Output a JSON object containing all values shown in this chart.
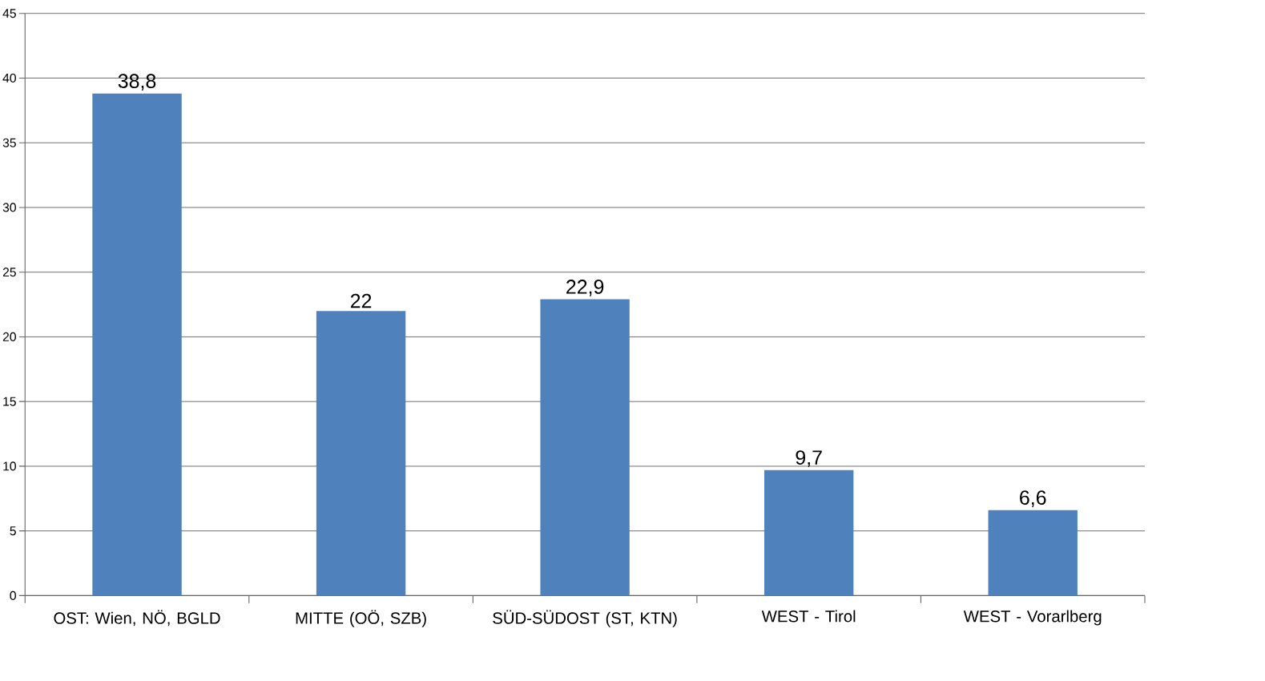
{
  "chart_data": {
    "type": "bar",
    "categories": [
      "OST: Wien, NÖ, BGLD",
      "MITTE (OÖ, SZB)",
      "SÜD-SÜDOST (ST, KTN)",
      "WEST - Tirol",
      "WEST - Vorarlberg"
    ],
    "values": [
      38.8,
      22,
      22.9,
      9.7,
      6.6
    ],
    "value_labels": [
      "38,8",
      "22",
      "22,9",
      "9,7",
      "6,6"
    ],
    "color": "#4f81bd",
    "ylim": [
      0,
      45
    ],
    "yticks": [
      0,
      5,
      10,
      15,
      20,
      25,
      30,
      35,
      40,
      45
    ],
    "grid": "y"
  }
}
